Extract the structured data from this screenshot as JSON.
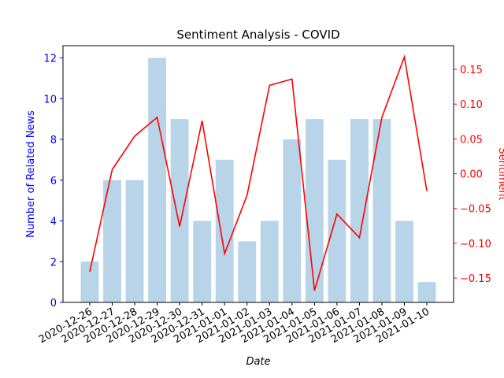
{
  "chart_data": {
    "type": "bar-line",
    "title": "Sentiment Analysis - COVID",
    "x_label": "Date",
    "y_label": "Number of Related News",
    "y2_label": "Sentiment",
    "categories": [
      "2020-12-26",
      "2020-12-27",
      "2020-12-28",
      "2020-12-29",
      "2020-12-30",
      "2020-12-31",
      "2021-01-01",
      "2021-01-02",
      "2021-01-03",
      "2021-01-04",
      "2021-01-05",
      "2021-01-06",
      "2021-01-07",
      "2021-01-08",
      "2021-01-09",
      "2021-01-10"
    ],
    "series": [
      {
        "type": "bar",
        "color": "#b7d4e8",
        "values": [
          2,
          6,
          6,
          12,
          9,
          4,
          7,
          3,
          4,
          8,
          9,
          7,
          9,
          9,
          4,
          1
        ]
      },
      {
        "type": "line",
        "axis": "y2",
        "color": "#ff0000",
        "values": [
          -0.141,
          0.006,
          0.054,
          0.081,
          -0.076,
          0.076,
          -0.115,
          -0.031,
          0.127,
          0.136,
          -0.168,
          -0.058,
          -0.092,
          0.081,
          0.168,
          -0.025
        ]
      }
    ],
    "ylim": [
      0,
      12.6
    ],
    "yticks": [
      0,
      2,
      4,
      6,
      8,
      10,
      12
    ],
    "y2lim": [
      -0.185,
      0.184
    ],
    "y2ticks": [
      {
        "value": -0.15,
        "label": "−0.15"
      },
      {
        "value": -0.1,
        "label": "−0.10"
      },
      {
        "value": -0.05,
        "label": "−0.05"
      },
      {
        "value": 0,
        "label": "0.00"
      },
      {
        "value": 0.05,
        "label": "0.05"
      },
      {
        "value": 0.1,
        "label": "0.10"
      },
      {
        "value": 0.15,
        "label": "0.15"
      }
    ],
    "y_color": "#0000ff",
    "y2_color": "#ff0000"
  }
}
